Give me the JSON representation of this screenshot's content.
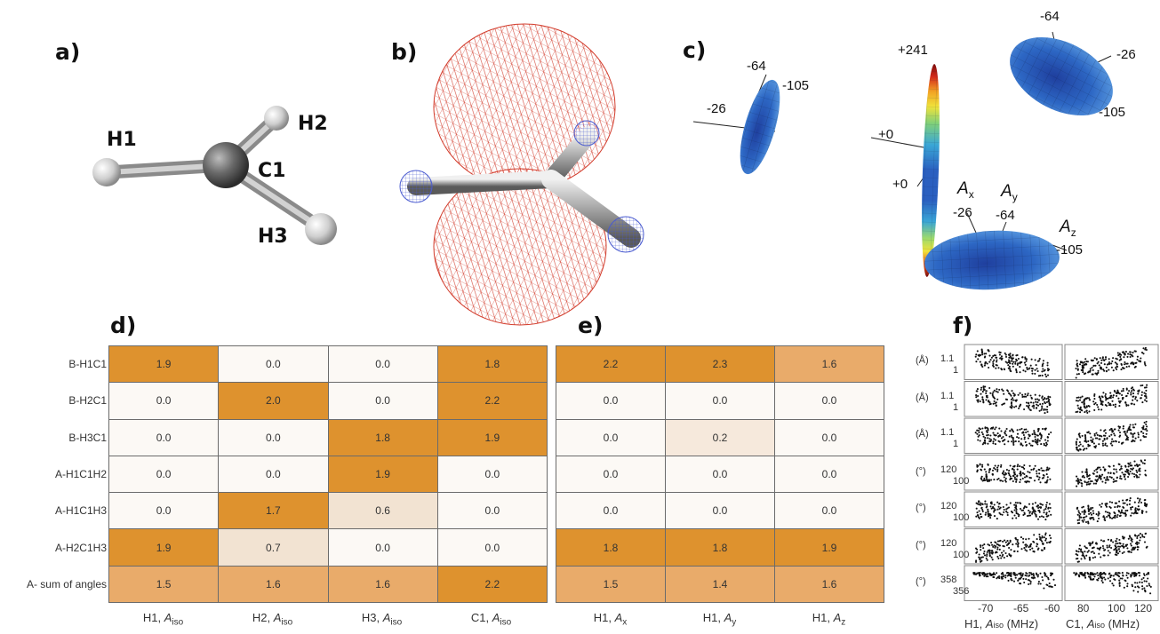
{
  "panels": {
    "a": "a)",
    "b": "b)",
    "c": "c)",
    "d": "d)",
    "e": "e)",
    "f": "f)"
  },
  "atoms": {
    "h1": "H1",
    "h2": "H2",
    "h3": "H3",
    "c1": "C1"
  },
  "tensor_small": {
    "v1": "-64",
    "v2": "-105",
    "v3": "-26"
  },
  "tensor_c": {
    "top": "+241",
    "mid": "+0",
    "low": "+0"
  },
  "tensor_tr": {
    "v1": "-64",
    "v2": "-26",
    "v3": "-105"
  },
  "tensor_br": {
    "ax": "A",
    "ax_sub": "x",
    "ay": "A",
    "ay_sub": "y",
    "az": "A",
    "az_sub": "z",
    "vx": "-26",
    "vy": "-64",
    "vz": "-105"
  },
  "table_d": {
    "rows": [
      "B-H1C1",
      "B-H2C1",
      "B-H3C1",
      "A-H1C1H2",
      "A-H1C1H3",
      "A-H2C1H3",
      "A- sum of angles"
    ],
    "cols": [
      {
        "main": "H1, ",
        "it": "A",
        "sub": "iso"
      },
      {
        "main": "H2, ",
        "it": "A",
        "sub": "iso"
      },
      {
        "main": "H3, ",
        "it": "A",
        "sub": "iso"
      },
      {
        "main": "C1, ",
        "it": "A",
        "sub": "iso"
      }
    ],
    "values": [
      [
        "1.9",
        "0.0",
        "0.0",
        "1.8"
      ],
      [
        "0.0",
        "2.0",
        "0.0",
        "2.2"
      ],
      [
        "0.0",
        "0.0",
        "1.8",
        "1.9"
      ],
      [
        "0.0",
        "0.0",
        "1.9",
        "0.0"
      ],
      [
        "0.0",
        "1.7",
        "0.6",
        "0.0"
      ],
      [
        "1.9",
        "0.7",
        "0.0",
        "0.0"
      ],
      [
        "1.5",
        "1.6",
        "1.6",
        "2.2"
      ]
    ]
  },
  "table_e": {
    "cols": [
      {
        "main": "H1, ",
        "it": "A",
        "sub": "x"
      },
      {
        "main": "H1, ",
        "it": "A",
        "sub": "y"
      },
      {
        "main": "H1, ",
        "it": "A",
        "sub": "z"
      }
    ],
    "values": [
      [
        "2.2",
        "2.3",
        "1.6"
      ],
      [
        "0.0",
        "0.0",
        "0.0"
      ],
      [
        "0.0",
        "0.2",
        "0.0"
      ],
      [
        "0.0",
        "0.0",
        "0.0"
      ],
      [
        "0.0",
        "0.0",
        "0.0"
      ],
      [
        "1.8",
        "1.8",
        "1.9"
      ],
      [
        "1.5",
        "1.4",
        "1.6"
      ]
    ]
  },
  "colors": {
    "high": "#de922e",
    "mid": "#e9ab6a",
    "low": "#f2e3d2",
    "zero": "#fcf9f5"
  },
  "chart_data": {
    "type": "scatter",
    "x_left": {
      "ticks": [
        "-70",
        "-65",
        "-60"
      ],
      "xlabel": "H1, A_iso (MHz)",
      "xlim": [
        -74,
        -57
      ]
    },
    "x_right": {
      "ticks": [
        "80",
        "100",
        "120"
      ],
      "xlabel": "C1, A_iso (MHz)",
      "xlim": [
        70,
        127
      ]
    },
    "rows": [
      {
        "unit": "(Å)",
        "ticks": [
          "1.1",
          "1"
        ]
      },
      {
        "unit": "(Å)",
        "ticks": [
          "1.1",
          "1"
        ]
      },
      {
        "unit": "(Å)",
        "ticks": [
          "1.1",
          "1"
        ]
      },
      {
        "unit": "(°)",
        "ticks": [
          "120",
          "100"
        ]
      },
      {
        "unit": "(°)",
        "ticks": [
          "120",
          "100"
        ]
      },
      {
        "unit": "(°)",
        "ticks": [
          "120",
          "100"
        ]
      },
      {
        "unit": "(°)",
        "ticks": [
          "358",
          "356"
        ]
      }
    ]
  }
}
